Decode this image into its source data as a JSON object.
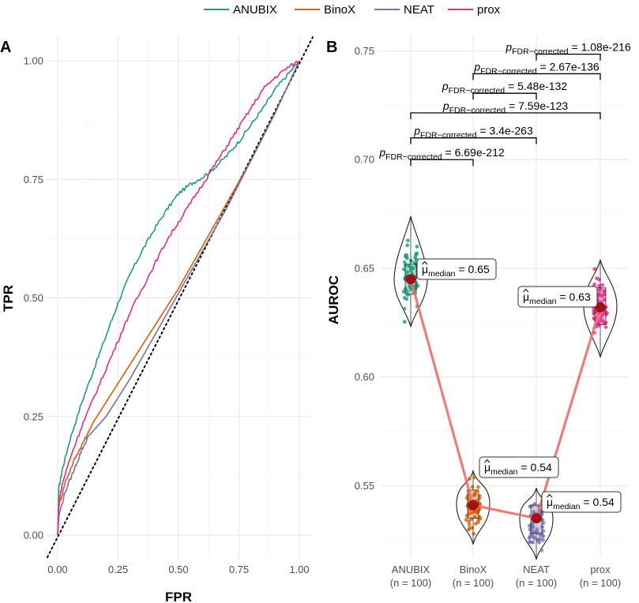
{
  "legend": {
    "items": [
      {
        "label": "ANUBIX",
        "color": "#1b9e77"
      },
      {
        "label": "BinoX",
        "color": "#d95f02"
      },
      {
        "label": "NEAT",
        "color": "#7570b3"
      },
      {
        "label": "prox",
        "color": "#e7298a"
      }
    ]
  },
  "panels": {
    "a_label": "A",
    "b_label": "B"
  },
  "chart_data": [
    {
      "type": "line",
      "panel": "A",
      "title": "",
      "xlabel": "FPR",
      "ylabel": "TPR",
      "xlim": [
        0,
        1
      ],
      "ylim": [
        0,
        1
      ],
      "x_ticks": [
        "0.00",
        "0.25",
        "0.50",
        "0.75",
        "1.00"
      ],
      "y_ticks": [
        "0.00",
        "0.25",
        "0.50",
        "0.75",
        "1.00"
      ],
      "reference_line": "diagonal dotted (y = x)",
      "series": [
        {
          "name": "ANUBIX",
          "color": "#1b9e77",
          "x": [
            0,
            0.005,
            0.02,
            0.05,
            0.1,
            0.15,
            0.2,
            0.25,
            0.3,
            0.35,
            0.4,
            0.45,
            0.5,
            0.55,
            0.6,
            0.65,
            0.7,
            0.75,
            0.8,
            0.85,
            0.9,
            0.95,
            1.0
          ],
          "y": [
            0,
            0.1,
            0.14,
            0.2,
            0.28,
            0.35,
            0.42,
            0.49,
            0.55,
            0.6,
            0.645,
            0.685,
            0.72,
            0.74,
            0.755,
            0.775,
            0.8,
            0.83,
            0.865,
            0.9,
            0.94,
            0.97,
            1.0
          ]
        },
        {
          "name": "BinoX",
          "color": "#d95f02",
          "x": [
            0,
            0.005,
            0.03,
            0.07,
            0.1,
            0.12,
            0.15,
            0.2,
            0.3,
            0.4,
            0.5,
            0.6,
            0.7,
            0.8,
            0.9,
            1.0
          ],
          "y": [
            0,
            0.06,
            0.11,
            0.16,
            0.19,
            0.21,
            0.24,
            0.28,
            0.36,
            0.44,
            0.52,
            0.61,
            0.7,
            0.79,
            0.89,
            1.0
          ]
        },
        {
          "name": "NEAT",
          "color": "#7570b3",
          "x": [
            0,
            0.005,
            0.03,
            0.07,
            0.1,
            0.13,
            0.2,
            0.3,
            0.4,
            0.5,
            0.6,
            0.7,
            0.8,
            0.9,
            1.0
          ],
          "y": [
            0,
            0.04,
            0.09,
            0.14,
            0.18,
            0.21,
            0.25,
            0.33,
            0.42,
            0.51,
            0.6,
            0.69,
            0.79,
            0.89,
            1.0
          ]
        },
        {
          "name": "prox",
          "color": "#e7298a",
          "x": [
            0,
            0.005,
            0.02,
            0.05,
            0.1,
            0.15,
            0.2,
            0.25,
            0.3,
            0.35,
            0.4,
            0.45,
            0.5,
            0.55,
            0.6,
            0.65,
            0.7,
            0.75,
            0.8,
            0.85,
            0.9,
            0.95,
            1.0
          ],
          "y": [
            0,
            0.07,
            0.11,
            0.16,
            0.23,
            0.29,
            0.35,
            0.41,
            0.47,
            0.52,
            0.57,
            0.62,
            0.66,
            0.7,
            0.74,
            0.78,
            0.82,
            0.86,
            0.9,
            0.94,
            0.965,
            0.985,
            1.0
          ]
        }
      ]
    },
    {
      "type": "violin",
      "panel": "B",
      "title": "",
      "xlabel": "",
      "ylabel": "AUROC",
      "ylim": [
        0.515,
        0.755
      ],
      "y_ticks": [
        0.55,
        0.6,
        0.65,
        0.7,
        0.75
      ],
      "y_tick_labels": [
        "0.55",
        "0.60",
        "0.65",
        "0.70",
        "0.75"
      ],
      "categories": [
        {
          "name": "ANUBIX",
          "n_label": "(n = 100)",
          "color": "#1b9e77",
          "median": 0.645,
          "q1": 0.638,
          "q3": 0.652,
          "min": 0.623,
          "max": 0.674,
          "median_label": "0.65"
        },
        {
          "name": "BinoX",
          "n_label": "(n = 100)",
          "color": "#d95f02",
          "median": 0.541,
          "q1": 0.535,
          "q3": 0.548,
          "min": 0.523,
          "max": 0.557,
          "median_label": "0.54"
        },
        {
          "name": "NEAT",
          "n_label": "(n = 100)",
          "color": "#7570b3",
          "median": 0.535,
          "q1": 0.528,
          "q3": 0.541,
          "min": 0.516,
          "max": 0.549,
          "median_label": "0.54"
        },
        {
          "name": "prox",
          "n_label": "(n = 100)",
          "color": "#e7298a",
          "median": 0.632,
          "q1": 0.624,
          "q3": 0.641,
          "min": 0.609,
          "max": 0.654,
          "median_label": "0.63"
        }
      ],
      "median_symbol": "μ",
      "median_subscript": "median",
      "connect_medians_color": "#f06c6c",
      "comparisons": [
        {
          "from": "ANUBIX",
          "to": "BinoX",
          "y": 0.7,
          "p_label": "p",
          "p_subscript": "FDR−corrected",
          "p_value": " = 6.69e-212"
        },
        {
          "from": "ANUBIX",
          "to": "NEAT",
          "y": 0.71,
          "p_label": "p",
          "p_subscript": "FDR−corrected",
          "p_value": " = 3.4e-263"
        },
        {
          "from": "ANUBIX",
          "to": "prox",
          "y": 0.7215,
          "p_label": "p",
          "p_subscript": "FDR−corrected",
          "p_value": " = 7.59e-123"
        },
        {
          "from": "BinoX",
          "to": "NEAT",
          "y": 0.7305,
          "p_label": "p",
          "p_subscript": "FDR−corrected",
          "p_value": " = 5.48e-132"
        },
        {
          "from": "BinoX",
          "to": "prox",
          "y": 0.7395,
          "p_label": "p",
          "p_subscript": "FDR−corrected",
          "p_value": " = 2.67e-136"
        },
        {
          "from": "NEAT",
          "to": "prox",
          "y": 0.7485,
          "p_label": "p",
          "p_subscript": "FDR−corrected",
          "p_value": " = 1.08e-216"
        }
      ]
    }
  ]
}
